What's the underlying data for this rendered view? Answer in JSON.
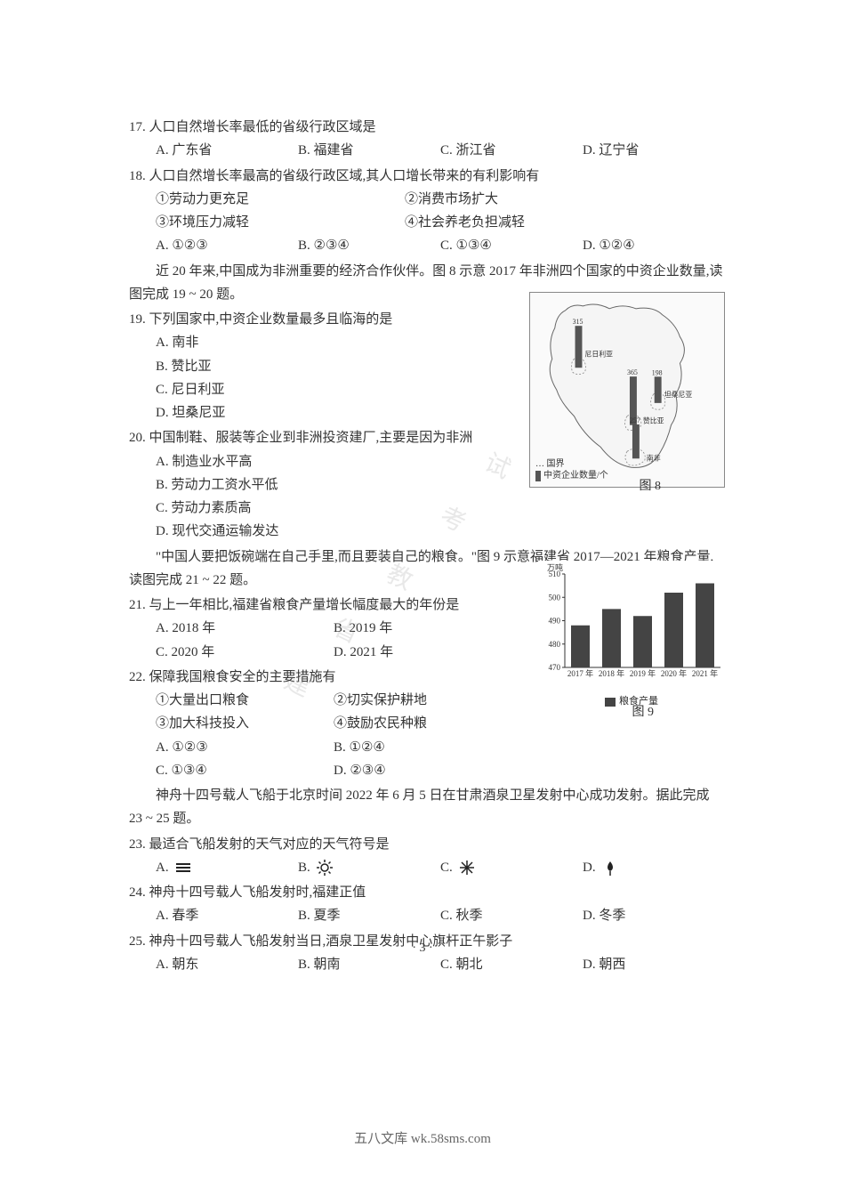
{
  "q17": {
    "stem": "17. 人口自然增长率最低的省级行政区域是",
    "opts": {
      "A": "A. 广东省",
      "B": "B. 福建省",
      "C": "C. 浙江省",
      "D": "D. 辽宁省"
    }
  },
  "q18": {
    "stem": "18. 人口自然增长率最高的省级行政区域,其人口增长带来的有利影响有",
    "items": {
      "i1": "①劳动力更充足",
      "i2": "②消费市场扩大",
      "i3": "③环境压力减轻",
      "i4": "④社会养老负担减轻"
    },
    "opts": {
      "A": "A. ①②③",
      "B": "B. ②③④",
      "C": "C. ①③④",
      "D": "D. ①②④"
    }
  },
  "ctx19": "近 20 年来,中国成为非洲重要的经济合作伙伴。图 8 示意 2017 年非洲四个国家的中资企业数量,读图完成 19 ~ 20 题。",
  "q19": {
    "stem": "19. 下列国家中,中资企业数量最多且临海的是",
    "opts": {
      "A": "A. 南非",
      "B": "B. 赞比亚",
      "C": "C. 尼日利亚",
      "D": "D. 坦桑尼亚"
    }
  },
  "q20": {
    "stem": "20. 中国制鞋、服装等企业到非洲投资建厂,主要是因为非洲",
    "opts": {
      "A": "A. 制造业水平高",
      "B": "B. 劳动力工资水平低",
      "C": "C. 劳动力素质高",
      "D": "D. 现代交通运输发达"
    }
  },
  "ctx21": "\"中国人要把饭碗端在自己手里,而且要装自己的粮食。\"图 9 示意福建省 2017—2021 年粮食产量,读图完成 21 ~ 22 题。",
  "q21": {
    "stem": "21. 与上一年相比,福建省粮食产量增长幅度最大的年份是",
    "opts": {
      "A": "A. 2018 年",
      "B": "B. 2019 年",
      "C": "C. 2020 年",
      "D": "D. 2021 年"
    }
  },
  "q22": {
    "stem": "22. 保障我国粮食安全的主要措施有",
    "items": {
      "i1": "①大量出口粮食",
      "i2": "②切实保护耕地",
      "i3": "③加大科技投入",
      "i4": "④鼓励农民种粮"
    },
    "opts": {
      "A": "A. ①②③",
      "B": "B. ①②④",
      "C": "C. ①③④",
      "D": "D. ②③④"
    }
  },
  "ctx23": "神舟十四号载人飞船于北京时间 2022 年 6 月 5 日在甘肃酒泉卫星发射中心成功发射。据此完成 23 ~ 25 题。",
  "q23": {
    "stem": "23. 最适合飞船发射的天气对应的天气符号是",
    "opts": {
      "A": "A.",
      "B": "B.",
      "C": "C.",
      "D": "D."
    }
  },
  "q24": {
    "stem": "24. 神舟十四号载人飞船发射时,福建正值",
    "opts": {
      "A": "A. 春季",
      "B": "B. 夏季",
      "C": "C. 秋季",
      "D": "D. 冬季"
    }
  },
  "q25": {
    "stem": "25. 神舟十四号载人飞船发射当日,酒泉卫星发射中心旗杆正午影子",
    "opts": {
      "A": "A. 朝东",
      "B": "B. 朝南",
      "C": "C. 朝北",
      "D": "D. 朝西"
    }
  },
  "fig8": {
    "label": "图 8",
    "legend_country": "… 国界",
    "legend_bar": "中资企业数量/个",
    "countries": [
      "尼日利亚",
      "坦桑尼亚",
      "赞比亚",
      "南非"
    ],
    "barValues": [
      315,
      198,
      365,
      257
    ],
    "barColor": "#555555",
    "borderColor": "#888888",
    "bgColor": "#fafafa"
  },
  "fig9": {
    "label": "图 9",
    "type": "bar",
    "ytitle": "万吨",
    "categories": [
      "2017 年",
      "2018 年",
      "2019 年",
      "2020 年",
      "2021 年"
    ],
    "values": [
      488,
      495,
      492,
      502,
      506
    ],
    "ylim": [
      470,
      510
    ],
    "ytick_step": 10,
    "yticks": [
      470,
      480,
      490,
      500,
      510
    ],
    "bar_color": "#444444",
    "axis_color": "#333333",
    "bg_color": "#ffffff",
    "legend": "粮食产量",
    "bar_width": 0.6,
    "label_fontsize": 9
  },
  "weatherIcons": {
    "A": "fog",
    "B": "sunny",
    "C": "snow",
    "D": "rain",
    "strokeColor": "#222222"
  },
  "pageNum": "· 3 ·",
  "watermark": "五八文库 wk.58sms.com",
  "diagWatermark": "福建省教育考试"
}
